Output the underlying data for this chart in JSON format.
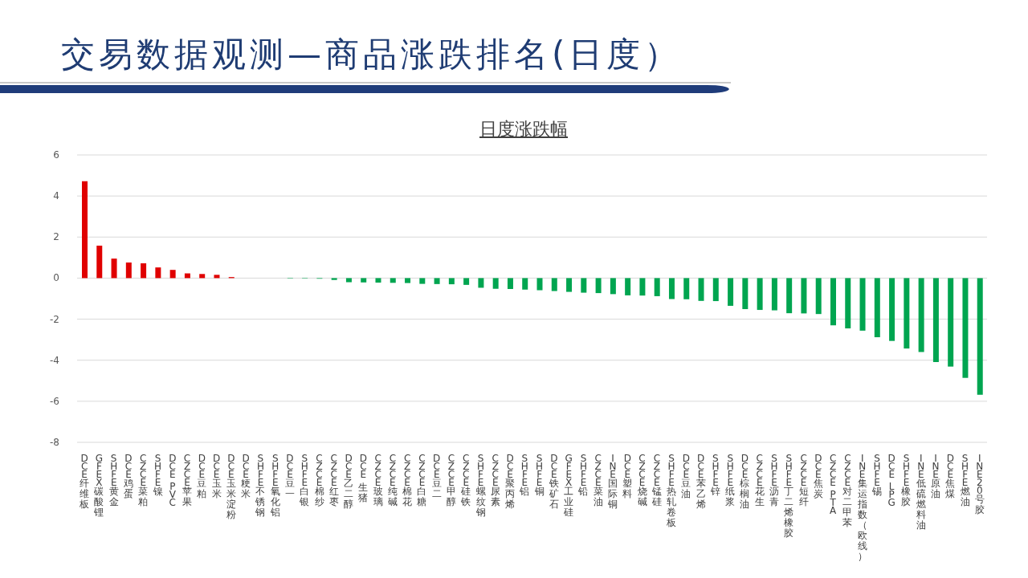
{
  "chart_data": {
    "type": "bar",
    "title": "交易数据观测—商品涨跌排名(日度）",
    "subtitle": "日度涨跌幅",
    "categories": [
      "DCE纤维板",
      "GFEX碳酸锂",
      "SHFE黄金",
      "DCE鸡蛋",
      "CZCE菜粕",
      "SHFE镍",
      "DCE PVC",
      "CZCE苹果",
      "DCE豆粕",
      "DCE玉米",
      "DCE玉米淀粉",
      "DCE粳米",
      "SHFE不锈钢",
      "SHFE氧化铝",
      "DCE豆一",
      "SHFE白银",
      "CZCE棉纱",
      "CZCE红枣",
      "DCE乙二醇",
      "DCE 生猪",
      "CZCE玻璃",
      "CZCE纯碱",
      "CZCE棉花",
      "CZCE白糖",
      "DCE豆二",
      "CZCE甲醇",
      "CZCE硅铁",
      "SHFE螺纹钢",
      "CZCE尿素",
      "DCE聚丙烯",
      "SHFE铝",
      "SHFE铜",
      "DCE铁矿石",
      "GFEX工业硅",
      "SHFE铅",
      "CZCE菜油",
      "INE国际铜",
      "DCE塑料",
      "CZCE烧碱",
      "CZCE锰硅",
      "SHFE热轧卷板",
      "DCE豆油",
      "DCE苯乙烯",
      "SHFE锌",
      "SHFE纸浆",
      "DCE棕榈油",
      "CZCE花生",
      "SHFE沥青",
      "SHFE丁二烯橡胶",
      "CZCE短纤",
      "DCE焦炭",
      "CZCE PTA",
      "CZCE对二甲苯",
      "INE集运指数（欧线）",
      "SHFE锡",
      "DCE LPG",
      "SHFE橡胶",
      "INE低硫燃料油",
      "INE原油",
      "DCE焦煤",
      "SHFE燃油",
      "INE20号胶"
    ],
    "values": [
      4.72,
      1.58,
      0.95,
      0.76,
      0.72,
      0.52,
      0.4,
      0.23,
      0.2,
      0.16,
      0.05,
      0,
      0,
      0,
      -0.02,
      -0.02,
      -0.03,
      -0.09,
      -0.2,
      -0.21,
      -0.22,
      -0.23,
      -0.24,
      -0.28,
      -0.29,
      -0.3,
      -0.33,
      -0.47,
      -0.52,
      -0.53,
      -0.56,
      -0.59,
      -0.63,
      -0.67,
      -0.71,
      -0.73,
      -0.78,
      -0.84,
      -0.85,
      -0.88,
      -1.02,
      -1.03,
      -1.11,
      -1.12,
      -1.35,
      -1.51,
      -1.55,
      -1.57,
      -1.71,
      -1.72,
      -1.75,
      -2.3,
      -2.45,
      -2.56,
      -2.88,
      -3.06,
      -3.43,
      -3.6,
      -4.09,
      -4.31,
      -4.86,
      -5.68
    ],
    "colors": [
      "#e00000",
      "#e00000",
      "#e00000",
      "#e00000",
      "#e00000",
      "#e00000",
      "#e00000",
      "#e00000",
      "#e00000",
      "#e00000",
      "#e00000",
      "#e00000",
      "#e00000",
      "#e00000",
      "#00a550",
      "#00a550",
      "#00a550",
      "#00a550",
      "#00a550",
      "#00a550",
      "#00a550",
      "#00a550",
      "#00a550",
      "#00a550",
      "#00a550",
      "#00a550",
      "#00a550",
      "#00a550",
      "#00a550",
      "#00a550",
      "#00a550",
      "#00a550",
      "#00a550",
      "#00a550",
      "#00a550",
      "#00a550",
      "#00a550",
      "#00a550",
      "#00a550",
      "#00a550",
      "#00a550",
      "#00a550",
      "#00a550",
      "#00a550",
      "#00a550",
      "#00a550",
      "#00a550",
      "#00a550",
      "#00a550",
      "#00a550",
      "#00a550",
      "#00a550",
      "#00a550",
      "#00a550",
      "#00a550",
      "#00a550",
      "#00a550",
      "#00a550",
      "#00a550",
      "#00a550",
      "#00a550",
      "#00a550"
    ],
    "ylim": [
      -8,
      6
    ],
    "yticks": [
      -8,
      -6,
      -4,
      -2,
      0,
      2,
      4,
      6
    ],
    "grid": "y"
  }
}
